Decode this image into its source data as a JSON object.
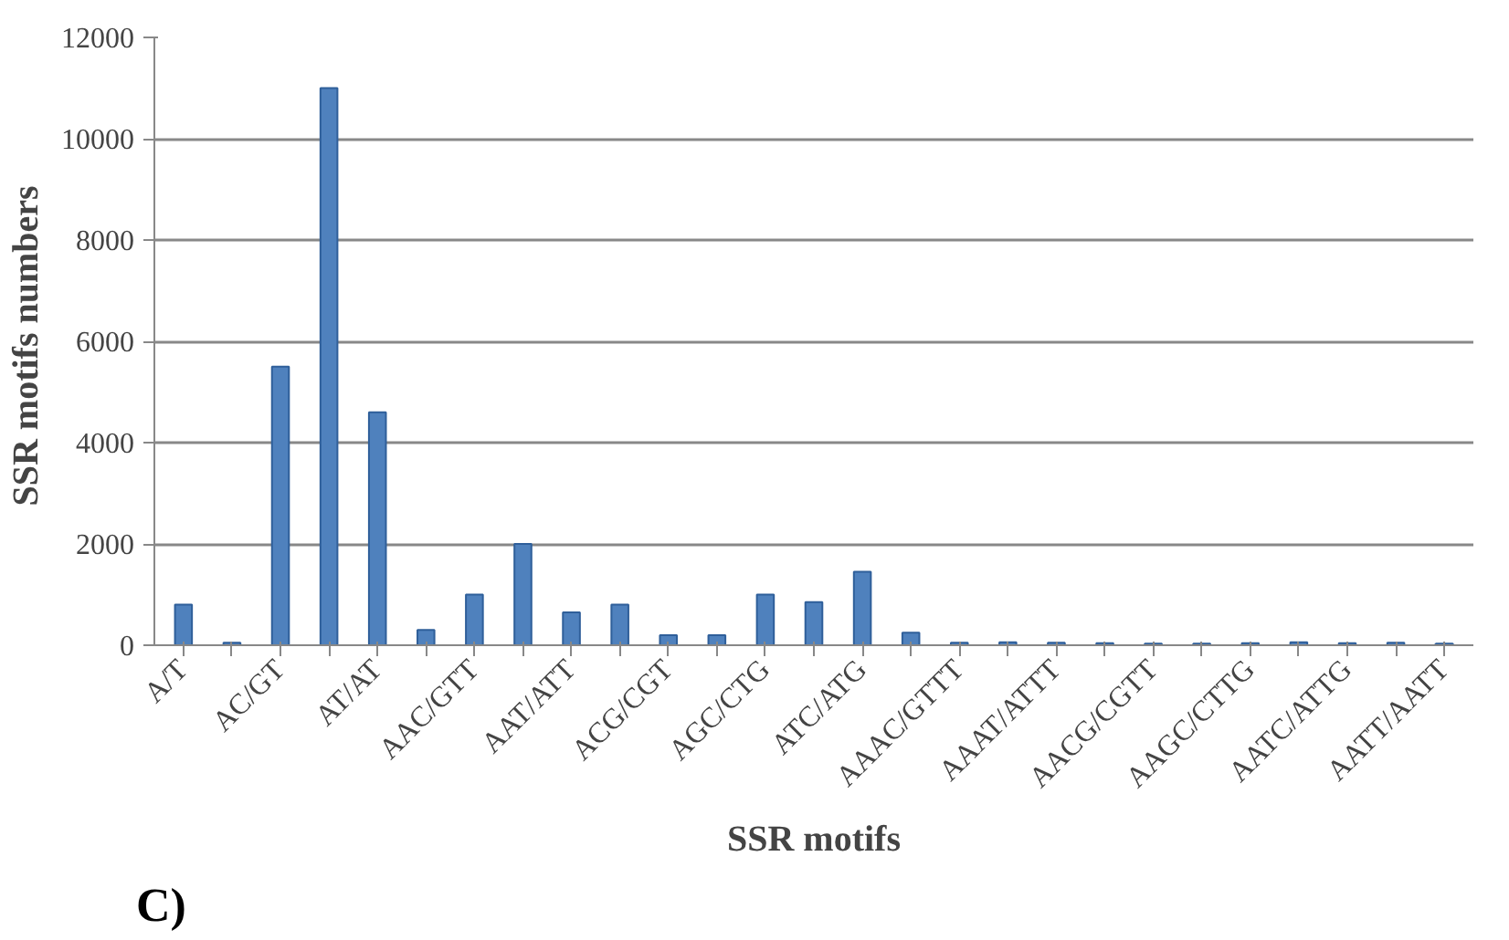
{
  "chart_data": {
    "type": "bar",
    "xlabel": "SSR motifs",
    "ylabel": "SSR motifs  numbers",
    "categories": [
      "A/T",
      null,
      "AC/GT",
      null,
      "AT/AT",
      null,
      "AAC/GTT",
      null,
      "AAT/ATT",
      null,
      "ACG/CGT",
      null,
      "AGC/CTG",
      null,
      "ATC/ATG",
      null,
      "AAAC/GTTT",
      null,
      "AAAT/ATTT",
      null,
      "AACG/CGTT",
      null,
      "AAGC/CTTG",
      null,
      "AATC/ATTG",
      null,
      "AATT/AATT"
    ],
    "values": [
      800,
      50,
      5500,
      11000,
      4600,
      300,
      1000,
      2000,
      650,
      800,
      200,
      200,
      1000,
      850,
      1450,
      250,
      50,
      60,
      50,
      40,
      30,
      30,
      40,
      60,
      40,
      50,
      30
    ],
    "color": "#4f81bd",
    "ylim": [
      0,
      12000
    ],
    "yticks": [
      0,
      2000,
      4000,
      6000,
      8000,
      10000,
      12000
    ],
    "grid": "y",
    "annotations": [
      "C)"
    ]
  }
}
